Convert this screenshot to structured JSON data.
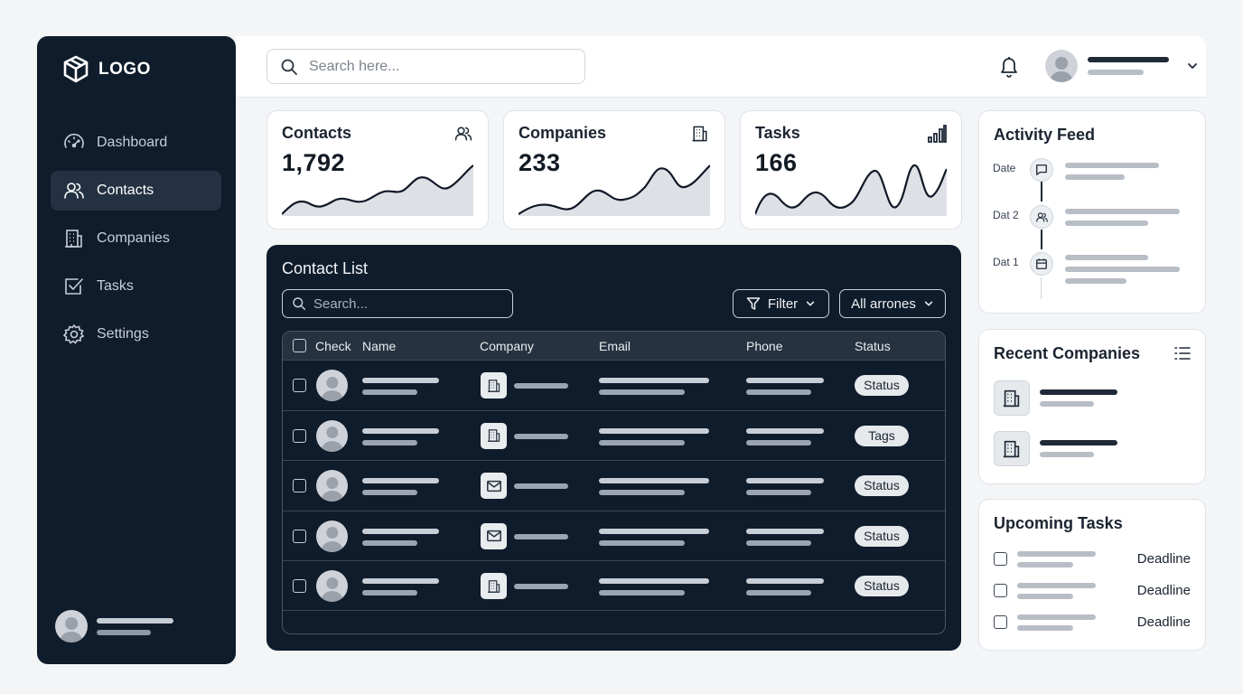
{
  "sidebar": {
    "logo": "LOGO",
    "items": [
      {
        "label": "Dashboard",
        "icon": "gauge-icon",
        "active": false
      },
      {
        "label": "Contacts",
        "icon": "users-icon",
        "active": true
      },
      {
        "label": "Companies",
        "icon": "building-icon",
        "active": false
      },
      {
        "label": "Tasks",
        "icon": "checkbox-icon",
        "active": false
      },
      {
        "label": "Settings",
        "icon": "gear-icon",
        "active": false
      }
    ]
  },
  "header": {
    "search_placeholder": "Search here..."
  },
  "stats": [
    {
      "title": "Contacts",
      "value": "1,792",
      "icon": "users-icon"
    },
    {
      "title": "Companies",
      "value": "233",
      "icon": "building-icon"
    },
    {
      "title": "Tasks",
      "value": "166",
      "icon": "bar-chart-icon"
    }
  ],
  "contact_list": {
    "title": "Contact List",
    "search_placeholder": "Search...",
    "filter_label": "Filter",
    "scope_label": "All arrones",
    "columns": [
      "Check",
      "Name",
      "Company",
      "Email",
      "Phone",
      "Status"
    ],
    "rows": [
      {
        "company_icon": "building-icon",
        "status": "Status"
      },
      {
        "company_icon": "building-icon",
        "status": "Tags"
      },
      {
        "company_icon": "mail-icon",
        "status": "Status"
      },
      {
        "company_icon": "mail-icon",
        "status": "Status"
      },
      {
        "company_icon": "building-icon",
        "status": "Status"
      }
    ]
  },
  "activity_feed": {
    "title": "Activity Feed",
    "entries": [
      {
        "date": "Date",
        "icon": "chat-icon"
      },
      {
        "date": "Dat 2",
        "icon": "users-icon"
      },
      {
        "date": "Dat 1",
        "icon": "calendar-icon"
      }
    ]
  },
  "recent_companies": {
    "title": "Recent Companies"
  },
  "upcoming_tasks": {
    "title": "Upcoming Tasks",
    "items": [
      {
        "deadline": "Deadline"
      },
      {
        "deadline": "Deadline"
      },
      {
        "deadline": "Deadline"
      }
    ]
  }
}
